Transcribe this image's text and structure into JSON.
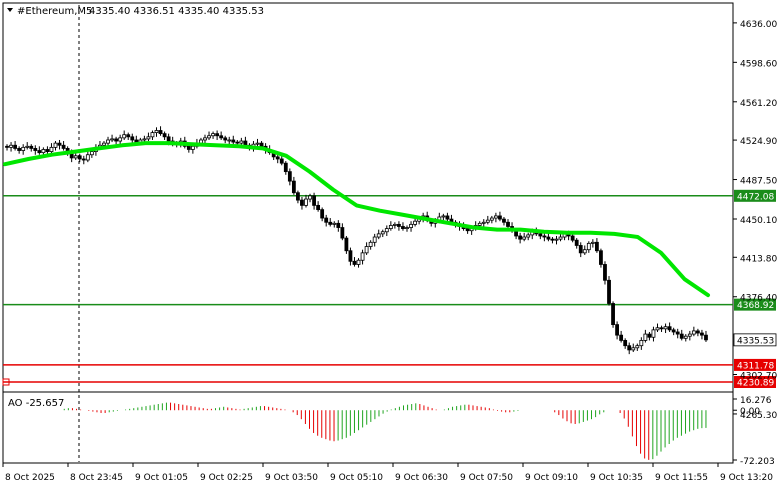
{
  "header": {
    "symbol": "#Ethereum,M5",
    "ohlc": "4335.40 4336.51 4335.40 4335.53"
  },
  "colors": {
    "background": "#ffffff",
    "axis": "#000000",
    "candle": "#000000",
    "ma": "#00e600",
    "level_green": "#1a8c1a",
    "level_red": "#e60000",
    "ao_up": "#1fa51f",
    "ao_down": "#e60000",
    "current_price_box": "#ffffff"
  },
  "chart_data": [
    {
      "type": "candlestick",
      "title": "#Ethereum,M5",
      "ylim": [
        4288,
        4652
      ],
      "y_ticks": [
        "4636.00",
        "4598.60",
        "4561.20",
        "4524.90",
        "4487.50",
        "4450.10",
        "4413.80",
        "4376.40",
        "4302.70",
        "4265.30"
      ],
      "x_tick_labels": [
        "8 Oct 2025",
        "8 Oct 23:45",
        "9 Oct 01:05",
        "9 Oct 02:25",
        "9 Oct 03:50",
        "9 Oct 05:10",
        "9 Oct 06:30",
        "9 Oct 07:50",
        "9 Oct 09:10",
        "9 Oct 10:35",
        "9 Oct 11:55",
        "9 Oct 13:20"
      ],
      "closes": [
        4518,
        4520,
        4517,
        4515,
        4518,
        4519,
        4517,
        4515,
        4513,
        4516,
        4514,
        4518,
        4522,
        4520,
        4517,
        4513,
        4508,
        4510,
        4507,
        4506,
        4511,
        4514,
        4518,
        4520,
        4522,
        4525,
        4526,
        4524,
        4527,
        4530,
        4528,
        4525,
        4523,
        4525,
        4526,
        4528,
        4532,
        4534,
        4531,
        4528,
        4524,
        4521,
        4522,
        4524,
        4519,
        4516,
        4519,
        4522,
        4525,
        4527,
        4529,
        4531,
        4529,
        4527,
        4525,
        4525,
        4523,
        4522,
        4524,
        4520,
        4518,
        4521,
        4522,
        4519,
        4516,
        4513,
        4509,
        4507,
        4503,
        4495,
        4486,
        4475,
        4468,
        4463,
        4469,
        4472,
        4463,
        4459,
        4451,
        4447,
        4445,
        4446,
        4442,
        4432,
        4420,
        4410,
        4407,
        4411,
        4418,
        4424,
        4428,
        4433,
        4436,
        4438,
        4441,
        4444,
        4445,
        4443,
        4441,
        4442,
        4445,
        4448,
        4451,
        4453,
        4449,
        4446,
        4448,
        4452,
        4453,
        4450,
        4447,
        4445,
        4443,
        4441,
        4439,
        4441,
        4444,
        4446,
        4447,
        4449,
        4451,
        4453,
        4450,
        4447,
        4443,
        4439,
        4434,
        4431,
        4433,
        4435,
        4438,
        4436,
        4434,
        4433,
        4431,
        4430,
        4431,
        4433,
        4436,
        4434,
        4430,
        4425,
        4418,
        4421,
        4427,
        4428,
        4420,
        4407,
        4392,
        4370,
        4350,
        4340,
        4335,
        4330,
        4326,
        4328,
        4330,
        4335,
        4341,
        4338,
        4345,
        4347,
        4346,
        4348,
        4345,
        4343,
        4341,
        4337,
        4339,
        4341,
        4344,
        4342,
        4340,
        4335.53
      ],
      "ma_series": [
        4502,
        4507,
        4511,
        4514,
        4517,
        4520,
        4522,
        4522,
        4521,
        4520,
        4519,
        4517,
        4510,
        4495,
        4478,
        4463,
        4458,
        4454,
        4450,
        4446,
        4442,
        4440,
        4440,
        4438,
        4437,
        4437,
        4436,
        4433,
        4418,
        4393,
        4378
      ],
      "levels": [
        {
          "label": "4472.08",
          "value": 4472.08,
          "color": "level_green"
        },
        {
          "label": "4368.92",
          "value": 4368.92,
          "color": "level_green"
        },
        {
          "label": "4311.78",
          "value": 4311.78,
          "color": "level_red"
        },
        {
          "label": "4230.89",
          "value": 4230.89,
          "color": "level_red"
        }
      ],
      "current_price": "4335.53",
      "grid": false
    },
    {
      "type": "bar",
      "title": "AO -25.657",
      "ylim": [
        -72.203,
        16.276
      ],
      "y_ticks": [
        "16.276",
        "0.00",
        "-72.203"
      ],
      "values": [
        0,
        0,
        0,
        0,
        0,
        0,
        0,
        0,
        0,
        0,
        0,
        0,
        0,
        0,
        2,
        3,
        3,
        2,
        1,
        0,
        -1,
        -2,
        -3,
        -4,
        -4,
        -3,
        -2,
        -1,
        0,
        1,
        2,
        3,
        4,
        5,
        6,
        7,
        8,
        9,
        10,
        11,
        11,
        10,
        9,
        8,
        7,
        6,
        5,
        4,
        3,
        2,
        2,
        3,
        4,
        5,
        4,
        3,
        2,
        1,
        2,
        3,
        4,
        5,
        6,
        6,
        5,
        4,
        3,
        2,
        1,
        0,
        -3,
        -7,
        -13,
        -20,
        -27,
        -33,
        -37,
        -40,
        -42,
        -44,
        -45,
        -44,
        -42,
        -40,
        -37,
        -33,
        -29,
        -25,
        -21,
        -17,
        -13,
        -9,
        -5,
        -2,
        1,
        3,
        5,
        7,
        8,
        9,
        10,
        9,
        7,
        5,
        3,
        1,
        0,
        1,
        3,
        5,
        6,
        7,
        8,
        8,
        7,
        6,
        5,
        4,
        3,
        1,
        -1,
        -2,
        -3,
        -3,
        -2,
        -1,
        0,
        0,
        0,
        0,
        0,
        0,
        0,
        0,
        -3,
        -7,
        -12,
        -16,
        -19,
        -20,
        -19,
        -17,
        -15,
        -13,
        -10,
        -6,
        -3,
        0,
        0,
        0,
        -4,
        -12,
        -24,
        -38,
        -52,
        -63,
        -70,
        -72,
        -71,
        -66,
        -60,
        -54,
        -49,
        -44,
        -40,
        -37,
        -34,
        -31,
        -29,
        -27,
        -26,
        -25.657
      ]
    }
  ]
}
